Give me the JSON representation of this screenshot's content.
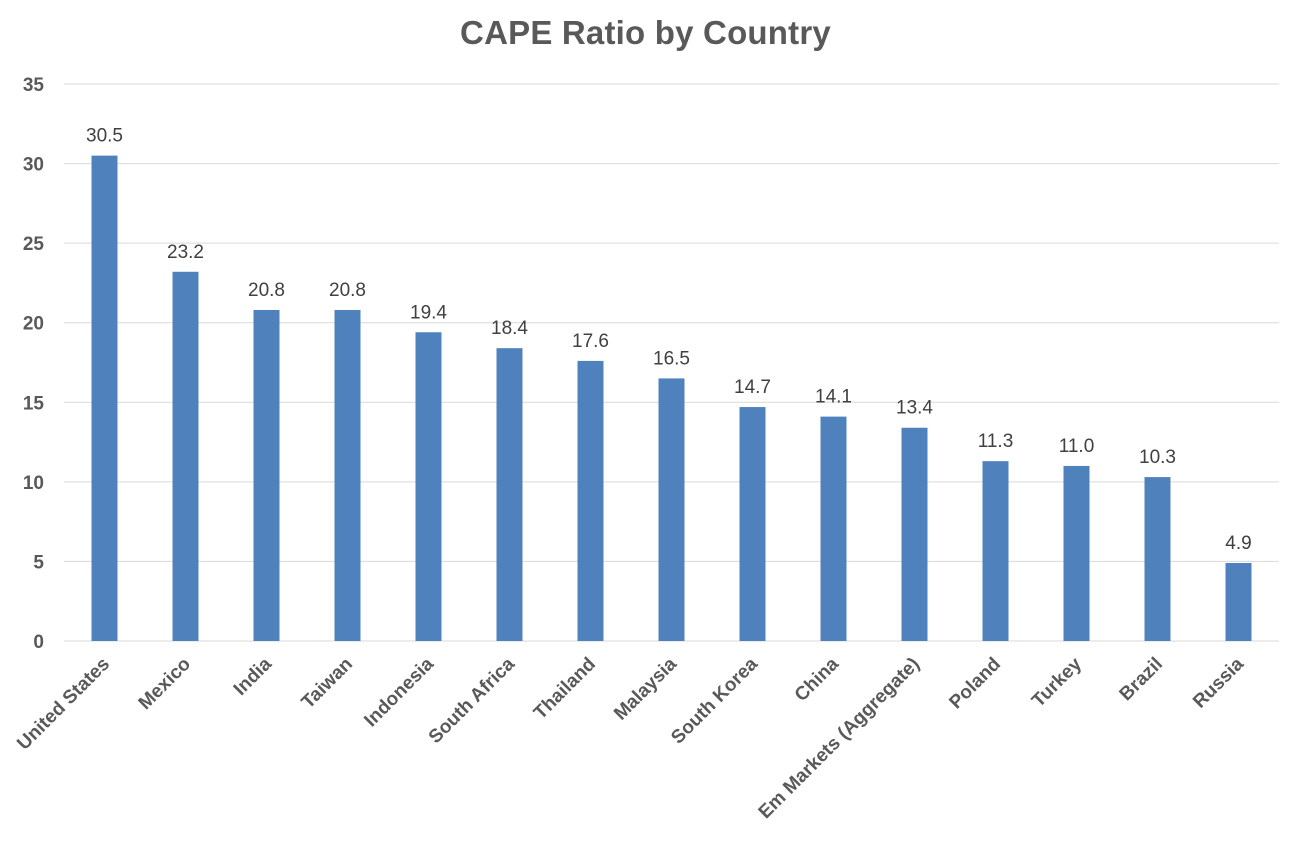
{
  "chart_data": {
    "type": "bar",
    "title": "CAPE Ratio by Country",
    "xlabel": "",
    "ylabel": "",
    "categories": [
      "United States",
      "Mexico",
      "India",
      "Taiwan",
      "Indonesia",
      "South Africa",
      "Thailand",
      "Malaysia",
      "South Korea",
      "China",
      "Em Markets (Aggregate)",
      "Poland",
      "Turkey",
      "Brazil",
      "Russia"
    ],
    "values": [
      30.5,
      23.2,
      20.8,
      20.8,
      19.4,
      18.4,
      17.6,
      16.5,
      14.7,
      14.1,
      13.4,
      11.3,
      11.0,
      10.3,
      4.9
    ],
    "data_labels": [
      "30.5",
      "23.2",
      "20.8",
      "20.8",
      "19.4",
      "18.4",
      "17.6",
      "16.5",
      "14.7",
      "14.1",
      "13.4",
      "11.3",
      "11.0",
      "10.3",
      "4.9"
    ],
    "ylim": [
      0,
      35
    ],
    "yticks": [
      "0",
      "5",
      "10",
      "15",
      "20",
      "25",
      "30",
      "35"
    ],
    "grid": true,
    "legend": "none",
    "bar_color": "#4f81bd"
  }
}
